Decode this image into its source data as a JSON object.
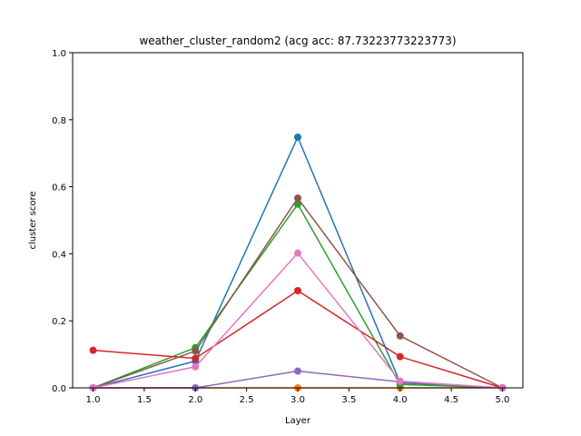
{
  "chart_data": {
    "type": "line",
    "title": "weather_cluster_random2 (acg acc: 87.73223773223773)",
    "xlabel": "Layer",
    "ylabel": "cluster score",
    "xlim": [
      0.8,
      5.2
    ],
    "ylim": [
      0.0,
      1.0
    ],
    "x_ticks": [
      "1.0",
      "1.5",
      "2.0",
      "2.5",
      "3.0",
      "3.5",
      "4.0",
      "4.5",
      "5.0"
    ],
    "y_ticks": [
      "0.0",
      "0.2",
      "0.4",
      "0.6",
      "0.8",
      "1.0"
    ],
    "x": [
      1.0,
      2.0,
      3.0,
      4.0,
      5.0
    ],
    "grid": false,
    "legend": "none",
    "series": [
      {
        "color": "#1f77b4",
        "values": [
          0.0,
          0.08,
          0.748,
          0.015,
          0.0
        ]
      },
      {
        "color": "#ff7f0e",
        "values": [
          0.0,
          0.0,
          0.0,
          0.0,
          0.0
        ]
      },
      {
        "color": "#2ca02c",
        "values": [
          0.0,
          0.12,
          0.548,
          0.01,
          0.0
        ]
      },
      {
        "color": "#d62728",
        "values": [
          0.112,
          0.088,
          0.29,
          0.093,
          0.0
        ]
      },
      {
        "color": "#9467bd",
        "values": [
          0.0,
          0.0,
          0.05,
          0.018,
          0.0
        ]
      },
      {
        "color": "#8c564b",
        "values": [
          0.0,
          0.11,
          0.566,
          0.155,
          0.0
        ]
      },
      {
        "color": "#e377c2",
        "values": [
          0.0,
          0.063,
          0.402,
          0.02,
          0.0
        ]
      }
    ]
  }
}
